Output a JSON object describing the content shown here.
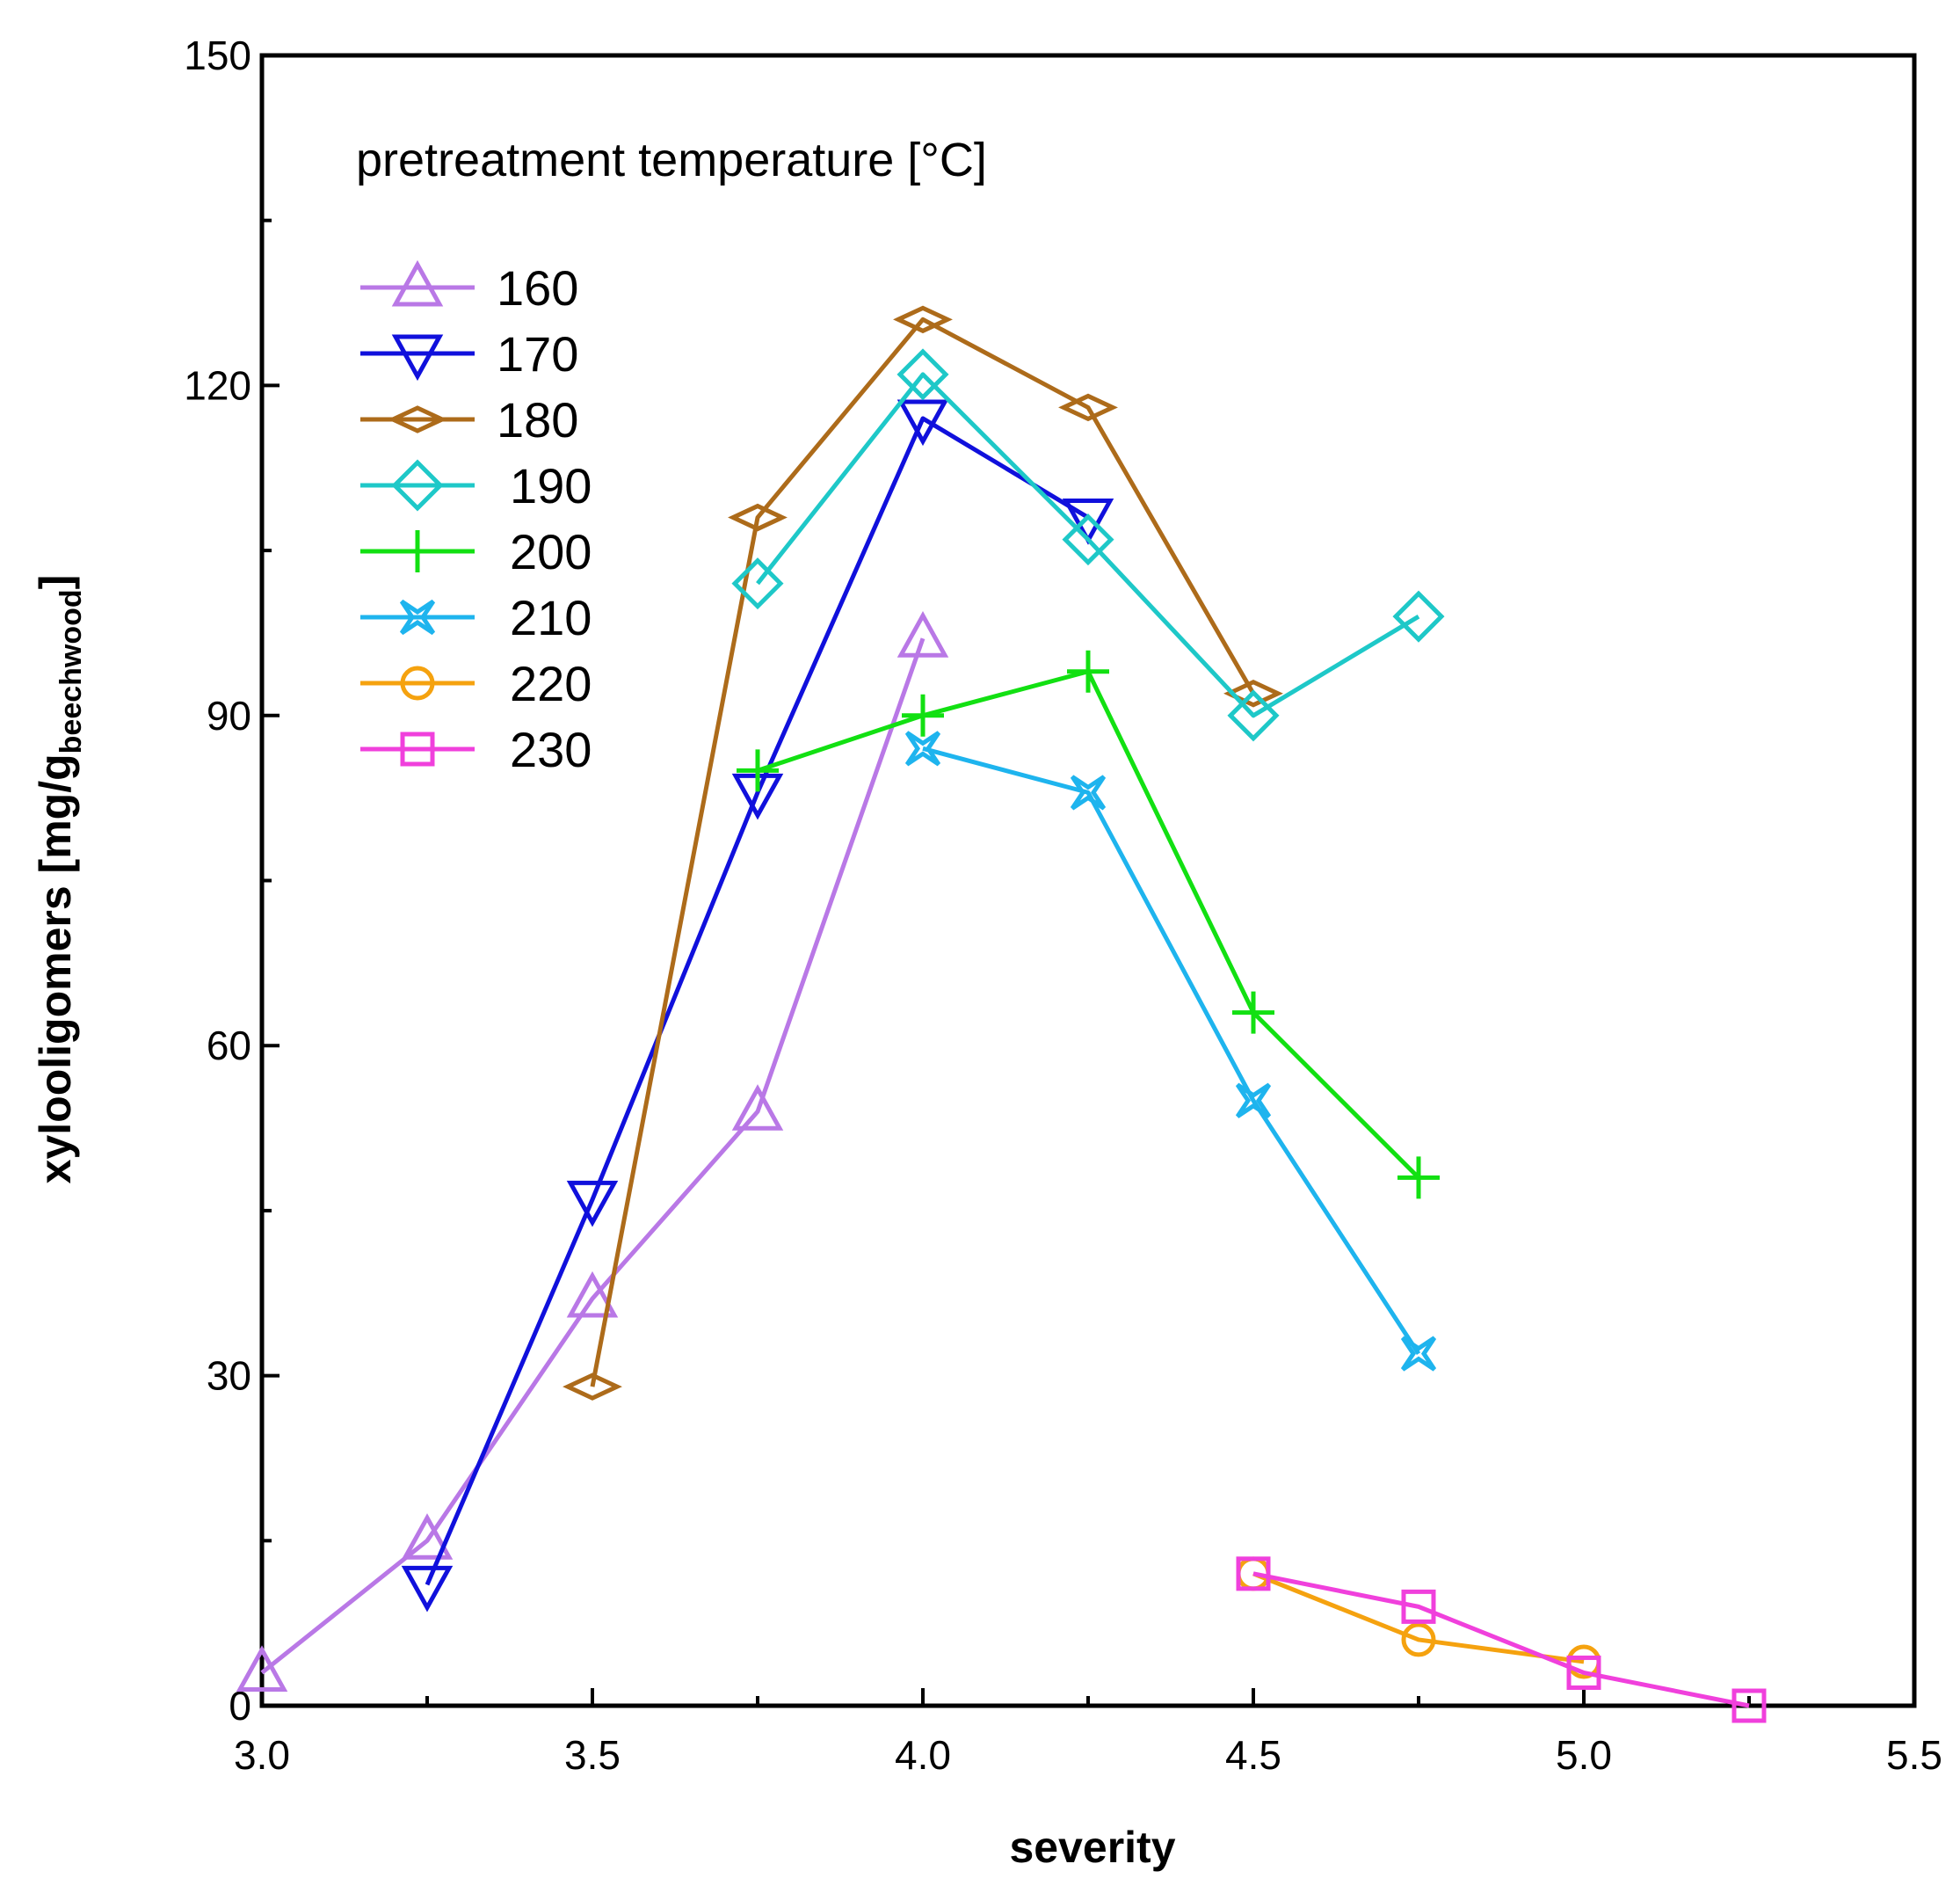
{
  "chart_data": {
    "type": "line",
    "title": "",
    "xlabel": "severity",
    "ylabel": "xylooligomers [mg/g",
    "ylabel_subscript": "beechwood",
    "ylabel_close": "]",
    "xlim": [
      3.0,
      5.5
    ],
    "ylim": [
      0,
      150
    ],
    "x_ticks": [
      "3.0",
      "3.5",
      "4.0",
      "4.5",
      "5.0",
      "5.5"
    ],
    "y_ticks": [
      "0",
      "30",
      "60",
      "90",
      "120",
      "150"
    ],
    "grid": false,
    "legend_title": "pretreatment temperature [°C]",
    "legend_position": "top-left",
    "series": [
      {
        "name": "160",
        "color": "#b978e6",
        "marker": "triangle-up",
        "x": [
          3.0,
          3.25,
          3.5,
          3.75,
          4.0
        ],
        "y": [
          3,
          15,
          37,
          54,
          97
        ]
      },
      {
        "name": "170",
        "color": "#1010dc",
        "marker": "triangle-down",
        "x": [
          3.25,
          3.5,
          3.75,
          4.0,
          4.25
        ],
        "y": [
          11,
          46,
          83,
          117,
          108
        ]
      },
      {
        "name": "180",
        "color": "#ad6b1a",
        "marker": "thin-diamond",
        "x": [
          3.5,
          3.75,
          4.0,
          4.25,
          4.5
        ],
        "y": [
          29,
          108,
          126,
          118,
          92
        ]
      },
      {
        "name": "190",
        "color": "#1ec8c8",
        "marker": "diamond",
        "x": [
          3.75,
          4.0,
          4.25,
          4.5,
          4.75
        ],
        "y": [
          102,
          121,
          106,
          90,
          99
        ]
      },
      {
        "name": "200",
        "color": "#12e012",
        "marker": "plus",
        "x": [
          3.75,
          4.0,
          4.25,
          4.5,
          4.75
        ],
        "y": [
          85,
          90,
          94,
          63,
          48
        ]
      },
      {
        "name": "210",
        "color": "#1eb4ee",
        "marker": "star",
        "x": [
          4.0,
          4.25,
          4.5,
          4.75
        ],
        "y": [
          87,
          83,
          55,
          32
        ]
      },
      {
        "name": "220",
        "color": "#f5a20f",
        "marker": "circle",
        "x": [
          4.5,
          4.75,
          5.0
        ],
        "y": [
          12,
          6,
          4
        ]
      },
      {
        "name": "230",
        "color": "#f040dc",
        "marker": "square",
        "x": [
          4.5,
          4.75,
          5.0,
          5.25
        ],
        "y": [
          12,
          9,
          3,
          0
        ]
      }
    ]
  }
}
